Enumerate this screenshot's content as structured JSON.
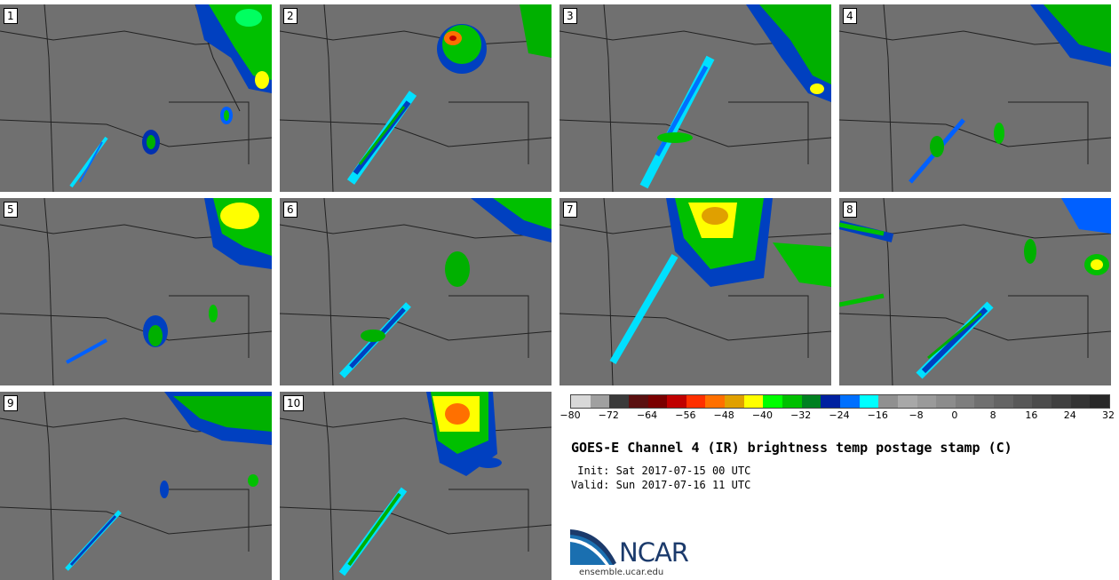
{
  "panels": [
    {
      "label": "1"
    },
    {
      "label": "2"
    },
    {
      "label": "3"
    },
    {
      "label": "4"
    },
    {
      "label": "5"
    },
    {
      "label": "6"
    },
    {
      "label": "7"
    },
    {
      "label": "8"
    },
    {
      "label": "9"
    },
    {
      "label": "10"
    }
  ],
  "colorbar": {
    "colors": [
      "#d8d8d8",
      "#a0a0a0",
      "#3a3a3a",
      "#5a1010",
      "#7a0000",
      "#c00000",
      "#ff3000",
      "#ff7000",
      "#e0a000",
      "#ffff00",
      "#00ff00",
      "#00c000",
      "#008020",
      "#0020a0",
      "#0070ff",
      "#00ffff",
      "#909090",
      "#a8a8a8",
      "#9a9a9a",
      "#8c8c8c",
      "#7e7e7e",
      "#707070",
      "#646464",
      "#585858",
      "#4c4c4c",
      "#404040",
      "#343434",
      "#282828"
    ],
    "tick_labels": [
      "−80",
      "−72",
      "−64",
      "−56",
      "−48",
      "−40",
      "−32",
      "−24",
      "−16",
      "−8",
      "0",
      "8",
      "16",
      "24",
      "32"
    ]
  },
  "title": "GOES-E Channel 4 (IR) brightness temp postage stamp (C)",
  "init": " Init: Sat 2017-07-15 00 UTC",
  "valid": "Valid: Sun 2017-07-16 11 UTC",
  "logo": {
    "name": "NCAR",
    "url": "ensemble.ucar.edu"
  }
}
